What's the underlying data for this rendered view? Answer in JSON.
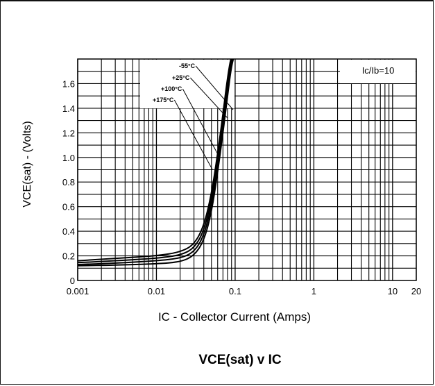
{
  "chart_data": {
    "type": "line",
    "title": "VCE(sat) v IC",
    "xlabel": "IC - Collector Current (Amps)",
    "ylabel": "VCE(sat) - (Volts)",
    "x_scale": "log",
    "xlim": [
      0.001,
      20
    ],
    "ylim": [
      0,
      1.8
    ],
    "x_ticks": [
      0.001,
      0.01,
      0.1,
      1,
      10,
      20
    ],
    "x_tick_labels": [
      "0.001",
      "0.01",
      "0.1",
      "1",
      "10",
      "20"
    ],
    "y_ticks": [
      0,
      0.2,
      0.4,
      0.6,
      0.8,
      1.0,
      1.2,
      1.4,
      1.6
    ],
    "y_tick_labels": [
      "0",
      "0.2",
      "0.4",
      "0.6",
      "0.8",
      "1.0",
      "1.2",
      "1.4",
      "1.6"
    ],
    "grid": true,
    "annotation": "Ic/Ib=10",
    "series": [
      {
        "name": "-55°C",
        "x": [
          0.001,
          0.003,
          0.01,
          0.02,
          0.03,
          0.04,
          0.05,
          0.06,
          0.07,
          0.08,
          0.09,
          0.1
        ],
        "y": [
          0.12,
          0.125,
          0.135,
          0.15,
          0.2,
          0.32,
          0.55,
          0.88,
          1.2,
          1.5,
          1.75,
          1.85
        ]
      },
      {
        "name": "+25°C",
        "x": [
          0.001,
          0.003,
          0.01,
          0.02,
          0.03,
          0.04,
          0.05,
          0.06,
          0.07,
          0.08,
          0.09,
          0.1
        ],
        "y": [
          0.13,
          0.14,
          0.16,
          0.18,
          0.23,
          0.36,
          0.6,
          0.92,
          1.25,
          1.55,
          1.8,
          1.85
        ]
      },
      {
        "name": "+100°C",
        "x": [
          0.001,
          0.003,
          0.01,
          0.02,
          0.03,
          0.04,
          0.05,
          0.06,
          0.07,
          0.08,
          0.09,
          0.1
        ],
        "y": [
          0.145,
          0.16,
          0.18,
          0.205,
          0.26,
          0.4,
          0.65,
          0.98,
          1.3,
          1.6,
          1.82,
          1.85
        ]
      },
      {
        "name": "+175°C",
        "x": [
          0.001,
          0.003,
          0.01,
          0.02,
          0.03,
          0.04,
          0.05,
          0.06,
          0.07,
          0.08,
          0.09,
          0.1
        ],
        "y": [
          0.16,
          0.18,
          0.2,
          0.23,
          0.29,
          0.44,
          0.7,
          1.03,
          1.35,
          1.65,
          1.84,
          1.85
        ]
      }
    ]
  }
}
